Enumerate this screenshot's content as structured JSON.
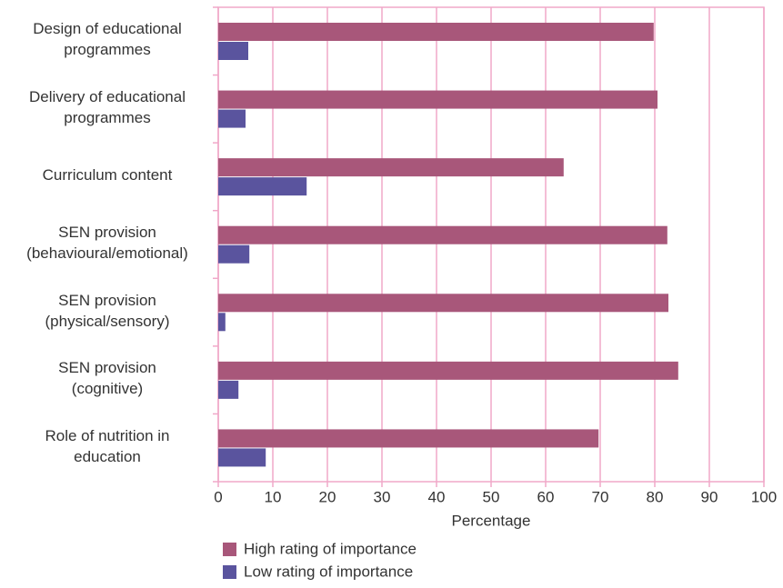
{
  "chart_data": {
    "type": "hbar",
    "categories": [
      "Design of educational\nprogrammes",
      "Delivery of educational\nprogrammes",
      "Curriculum content",
      "SEN provision\n(behavioural/emotional)",
      "SEN provision\n(physical/sensory)",
      "SEN provision\n(cognitive)",
      "Role of nutrition in\neducation"
    ],
    "series": [
      {
        "name": "High rating of importance",
        "color": "#a8577a",
        "values": [
          79.8,
          80.5,
          63.3,
          82.3,
          82.5,
          84.3,
          69.7
        ]
      },
      {
        "name": "Low rating of importance",
        "color": "#5a549e",
        "values": [
          5.5,
          5,
          16.2,
          5.7,
          1.3,
          3.7,
          8.7
        ]
      }
    ],
    "xlabel": "Percentage",
    "xlim": [
      0,
      100
    ],
    "xticks": [
      0,
      10,
      20,
      30,
      40,
      50,
      60,
      70,
      80,
      90,
      100
    ],
    "grid": true,
    "legend": "bottom-left"
  }
}
